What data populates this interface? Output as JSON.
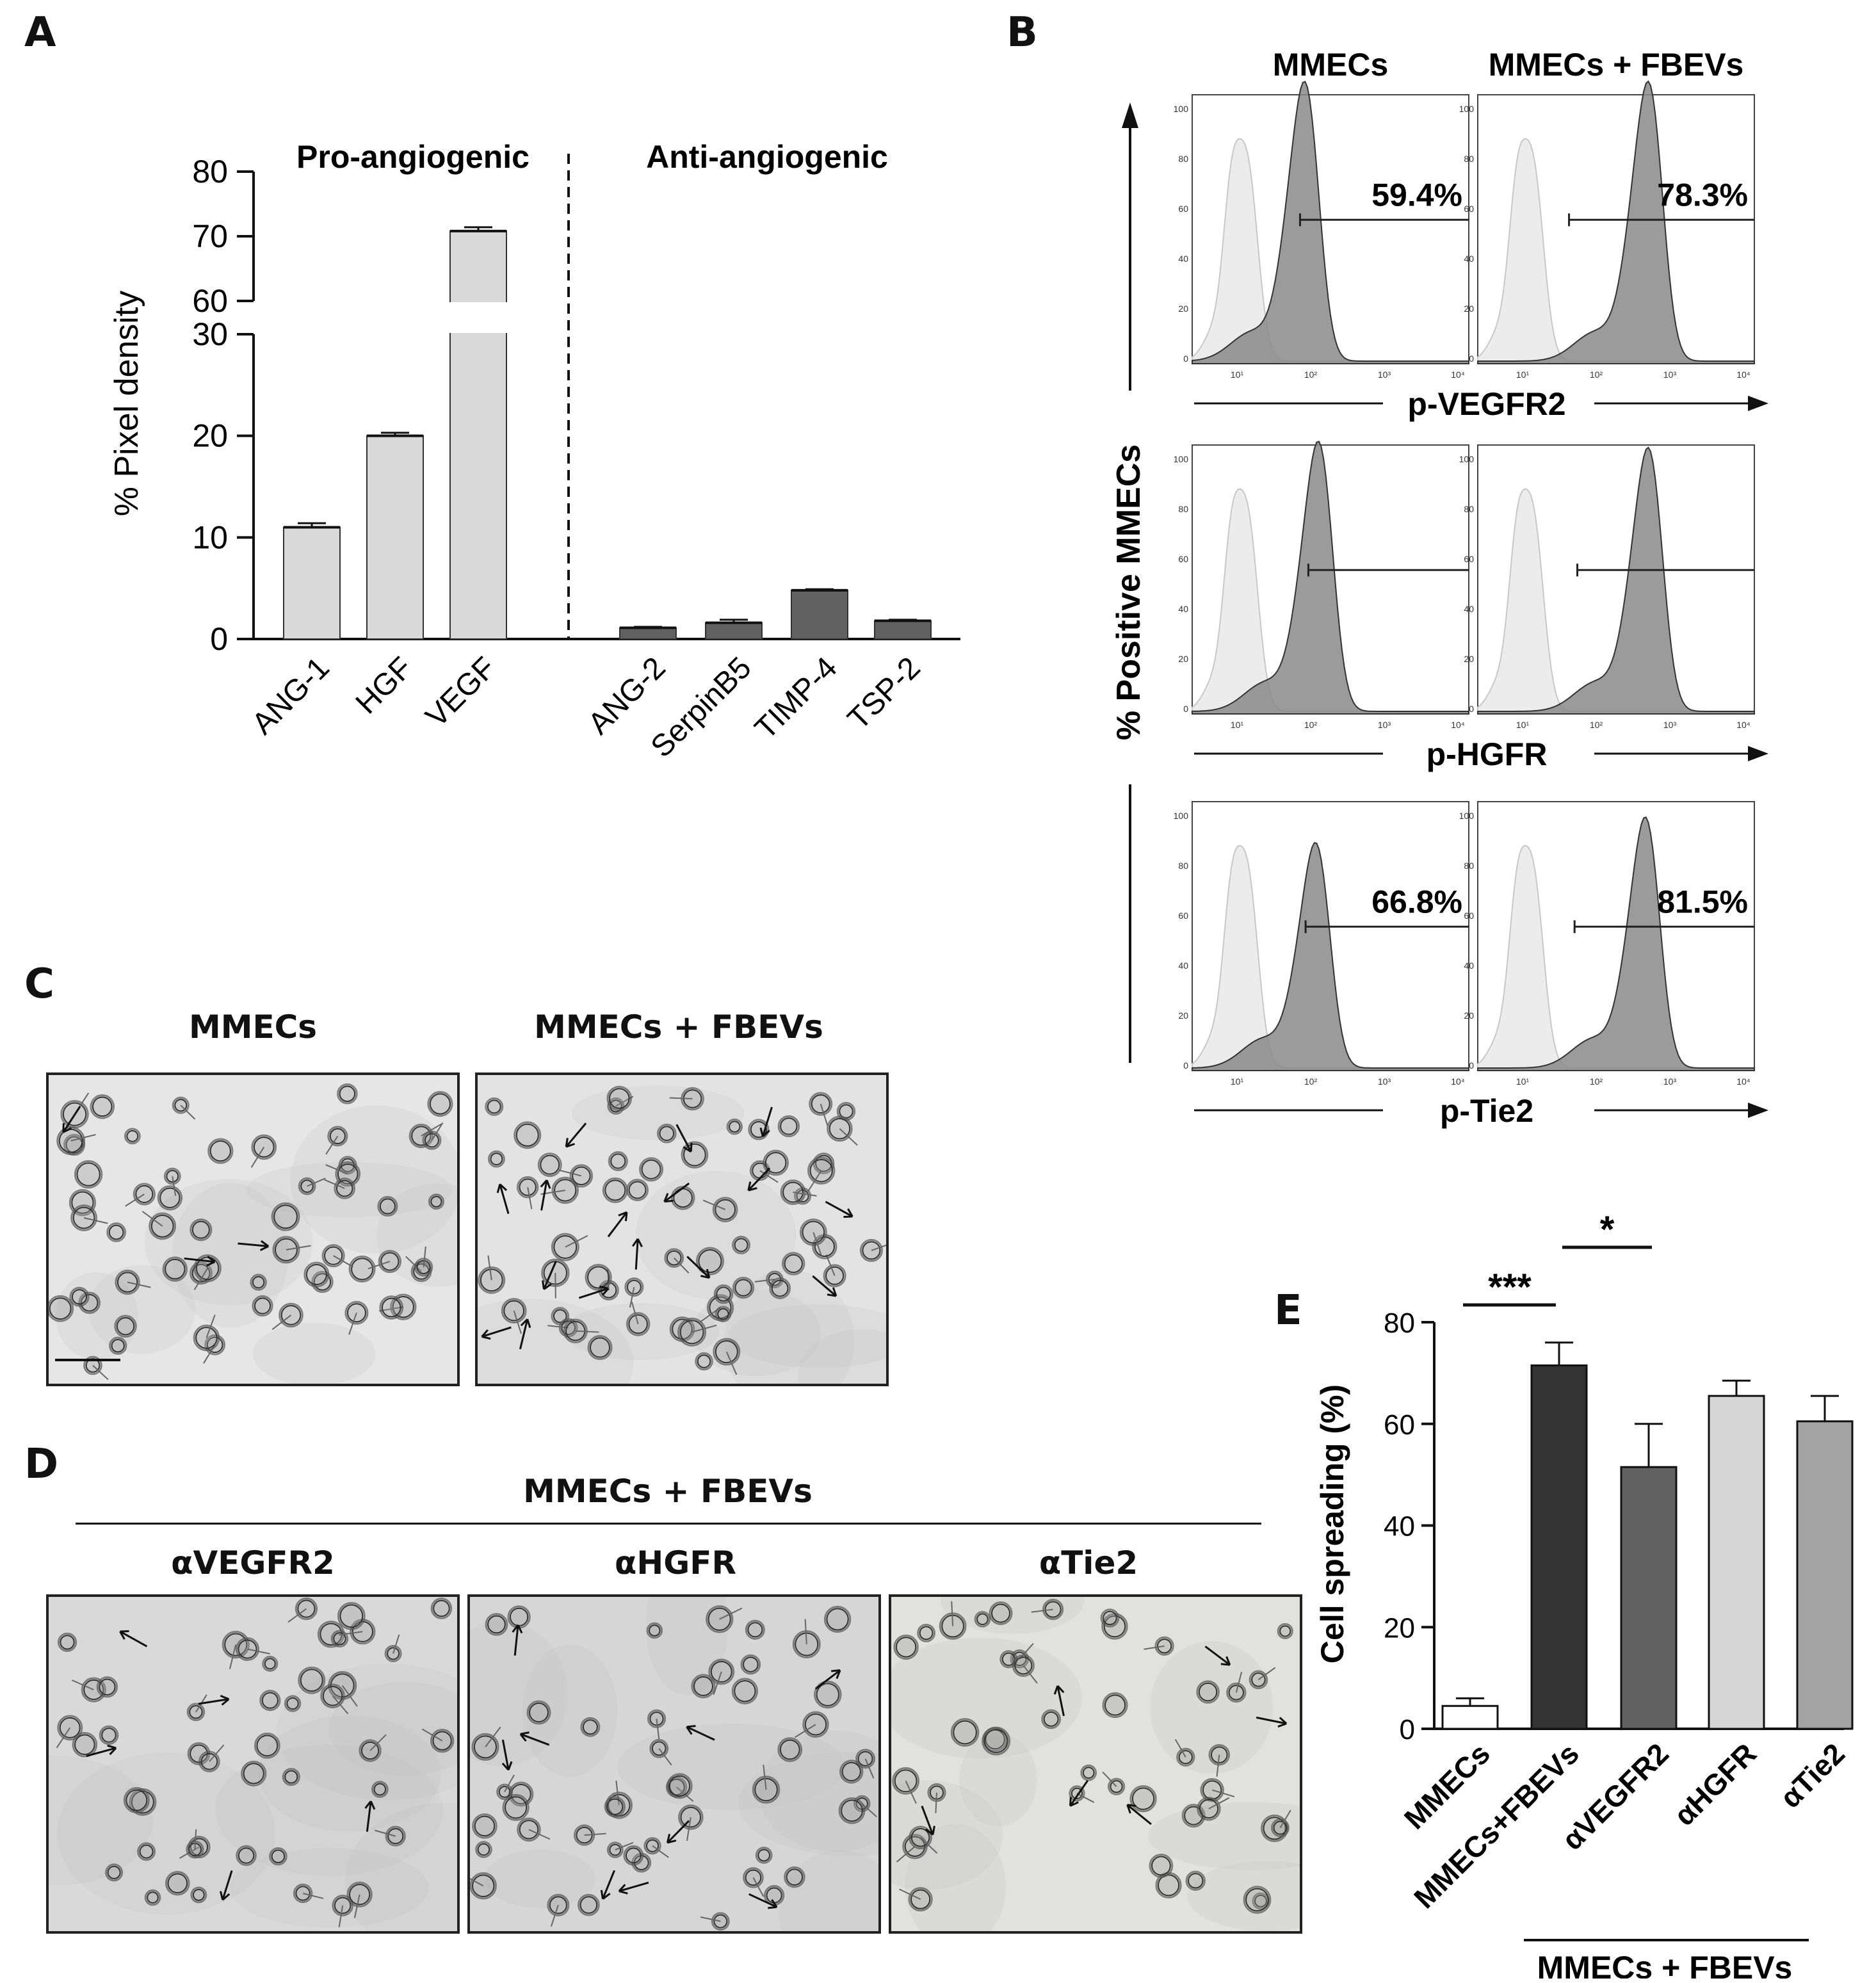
{
  "panels": {
    "a": "A",
    "b": "B",
    "c": "C",
    "d": "D",
    "e": "E"
  },
  "chart_data": [
    {
      "type": "bar",
      "panel": "A",
      "ylabel": "% Pixel density",
      "axis_break": [
        30,
        60
      ],
      "yticks": [
        0,
        10,
        20,
        30,
        60,
        70,
        80
      ],
      "groups": [
        {
          "label": "Pro-angiogenic",
          "categories": [
            "ANG-1",
            "HGF",
            "VEGF"
          ],
          "values": [
            11.0,
            20.0,
            70.8
          ],
          "errors": [
            0.4,
            0.3,
            0.6
          ],
          "color": "#d9d9d9"
        },
        {
          "label": "Anti-angiogenic",
          "categories": [
            "ANG-2",
            "SerpinB5",
            "TIMP-4",
            "TSP-2"
          ],
          "values": [
            1.1,
            1.6,
            4.8,
            1.8
          ],
          "errors": [
            0.1,
            0.3,
            0.1,
            0.1
          ],
          "color": "#616161"
        }
      ]
    },
    {
      "type": "histogram",
      "panel": "B",
      "columns": [
        "MMECs",
        "MMECs + FBEVs"
      ],
      "ylabel": "% Positive MMECs",
      "y_ticks": [
        "0",
        "20",
        "40",
        "60",
        "80",
        "100"
      ],
      "x_ticks": [
        "10¹",
        "10²",
        "10³",
        "10⁴"
      ],
      "rows": [
        {
          "marker": "p-VEGFR2",
          "percentages": [
            "59.4%",
            "78.3%"
          ]
        },
        {
          "marker": "p-HGFR",
          "percentages": [
            "",
            ""
          ]
        },
        {
          "marker": "p-Tie2",
          "percentages": [
            "66.8%",
            "81.5%"
          ]
        }
      ]
    },
    {
      "type": "bar",
      "panel": "E",
      "ylabel": "Cell  spreading (%)",
      "ylim": [
        0,
        80
      ],
      "yticks": [
        0,
        20,
        40,
        60,
        80
      ],
      "categories": [
        "MMECs",
        "MMECs+FBEVs",
        "αVEGFR2",
        "αHGFR",
        "αTie2"
      ],
      "values": [
        4.5,
        71.5,
        51.5,
        65.5,
        60.5
      ],
      "errors": [
        1.5,
        4.5,
        8.5,
        3.0,
        5.0
      ],
      "colors": [
        "#ffffff",
        "#333333",
        "#616161",
        "#d6d6d6",
        "#a3a3a3"
      ],
      "significance": [
        "***",
        "*"
      ],
      "group_label": "MMECs  + FBEVs"
    }
  ],
  "panel_c": {
    "titles": [
      "MMECs",
      "MMECs + FBEVs"
    ]
  },
  "panel_d": {
    "header": "MMECs + FBEVs",
    "titles": [
      "αVEGFR2",
      "αHGFR",
      "αTie2"
    ]
  }
}
